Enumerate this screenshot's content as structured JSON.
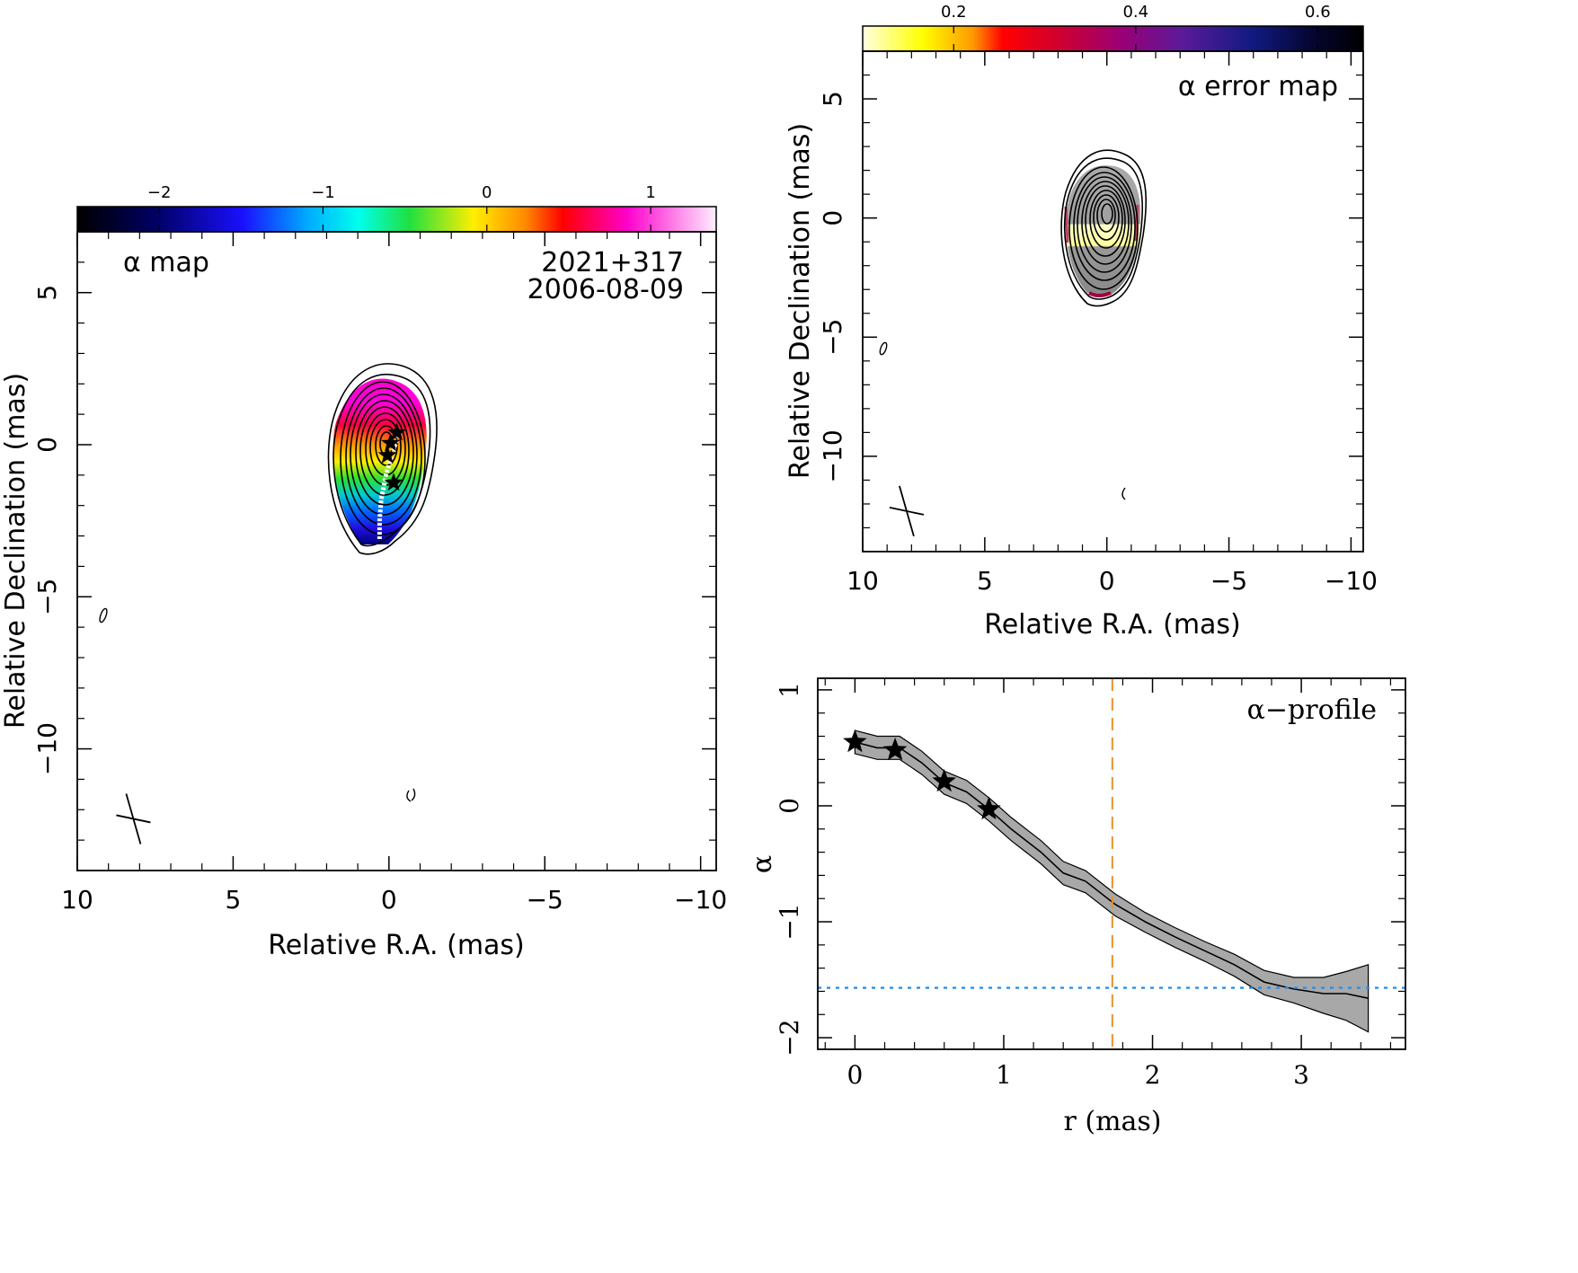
{
  "chart_data": [
    {
      "type": "heatmap",
      "panel": "alpha-map",
      "label": "α map",
      "source": "2021+317",
      "date": "2006-08-09",
      "xlabel": "Relative R.A. (mas)",
      "ylabel": "Relative Declination (mas)",
      "xlim": [
        10,
        -10.5
      ],
      "ylim": [
        -14,
        7
      ],
      "x_ticks": [
        10,
        5,
        0,
        -5,
        -10
      ],
      "x_tick_labels": [
        "10",
        "5",
        "0",
        "−5",
        "−10"
      ],
      "y_ticks": [
        5,
        0,
        -5,
        -10
      ],
      "y_tick_labels": [
        "5",
        "0",
        "−5",
        "−10"
      ],
      "colorbar": {
        "range": [
          -2.5,
          1.4
        ],
        "ticks": [
          -2,
          -1,
          0,
          1
        ],
        "tick_labels": [
          "−2",
          "−1",
          "0",
          "1"
        ],
        "colormap": "black-blue-cyan-green-yellow-red-magenta-white"
      },
      "stars": [
        [
          -0.25,
          0.4
        ],
        [
          -0.05,
          0.05
        ],
        [
          0.05,
          -0.35
        ],
        [
          -0.15,
          -1.25
        ]
      ],
      "ridge_line": [
        [
          -0.3,
          0.3
        ],
        [
          -0.1,
          -0.3
        ],
        [
          0.1,
          -1.0
        ],
        [
          0.25,
          -1.8
        ],
        [
          0.3,
          -2.5
        ],
        [
          0.3,
          -3.1
        ]
      ],
      "beam_center": [
        8.2,
        -12.3
      ],
      "grid": false,
      "legend": "none"
    },
    {
      "type": "heatmap",
      "panel": "alpha-error-map",
      "label": "α error map",
      "xlabel": "Relative R.A. (mas)",
      "ylabel": "Relative Declination (mas)",
      "xlim": [
        10,
        -10.5
      ],
      "ylim": [
        -14,
        7
      ],
      "x_ticks": [
        10,
        5,
        0,
        -5,
        -10
      ],
      "x_tick_labels": [
        "10",
        "5",
        "0",
        "−5",
        "−10"
      ],
      "y_ticks": [
        5,
        0,
        -5,
        -10
      ],
      "y_tick_labels": [
        "5",
        "0",
        "−5",
        "−10"
      ],
      "colorbar": {
        "range": [
          0.1,
          0.65
        ],
        "ticks": [
          0.2,
          0.4,
          0.6
        ],
        "tick_labels": [
          "0.2",
          "0.4",
          "0.6"
        ],
        "colormap": "white-yellow-red-purple-navy-black"
      },
      "beam_center": [
        8.2,
        -12.3
      ],
      "grid": false,
      "legend": "none"
    },
    {
      "type": "line",
      "panel": "alpha-profile",
      "label": "α−profile",
      "xlabel": "r (mas)",
      "ylabel": "α",
      "xlim": [
        -0.25,
        3.7
      ],
      "ylim": [
        -2.1,
        1.1
      ],
      "x_ticks": [
        0,
        1,
        2,
        3
      ],
      "x_tick_labels": [
        "0",
        "1",
        "2",
        "3"
      ],
      "y_ticks": [
        1,
        0,
        -1,
        -2
      ],
      "y_tick_labels": [
        "1",
        "0",
        "−1",
        "−2"
      ],
      "x": [
        0,
        0.15,
        0.3,
        0.45,
        0.6,
        0.75,
        0.9,
        1.05,
        1.25,
        1.4,
        1.55,
        1.75,
        1.95,
        2.15,
        2.35,
        2.55,
        2.75,
        2.95,
        3.15,
        3.3,
        3.45
      ],
      "y": [
        0.55,
        0.5,
        0.5,
        0.37,
        0.2,
        0.12,
        -0.03,
        -0.2,
        -0.4,
        -0.58,
        -0.65,
        -0.85,
        -1.0,
        -1.13,
        -1.25,
        -1.37,
        -1.52,
        -1.58,
        -1.62,
        -1.62,
        -1.66
      ],
      "y_upper": [
        0.65,
        0.6,
        0.6,
        0.47,
        0.3,
        0.22,
        0.07,
        -0.1,
        -0.3,
        -0.48,
        -0.56,
        -0.76,
        -0.92,
        -1.05,
        -1.17,
        -1.28,
        -1.42,
        -1.48,
        -1.48,
        -1.43,
        -1.37
      ],
      "y_lower": [
        0.45,
        0.4,
        0.4,
        0.27,
        0.1,
        0.02,
        -0.13,
        -0.3,
        -0.5,
        -0.68,
        -0.75,
        -0.95,
        -1.09,
        -1.22,
        -1.34,
        -1.47,
        -1.63,
        -1.7,
        -1.79,
        -1.85,
        -1.95
      ],
      "stars": [
        [
          0,
          0.55
        ],
        [
          0.27,
          0.48
        ],
        [
          0.6,
          0.21
        ],
        [
          0.9,
          -0.03
        ]
      ],
      "vline_x": 1.73,
      "vline_color": "#e8922a",
      "hline_y": -1.57,
      "hline_color": "#2f8de4",
      "band_color": "#a8a8a8",
      "grid": false,
      "legend": "none"
    }
  ]
}
